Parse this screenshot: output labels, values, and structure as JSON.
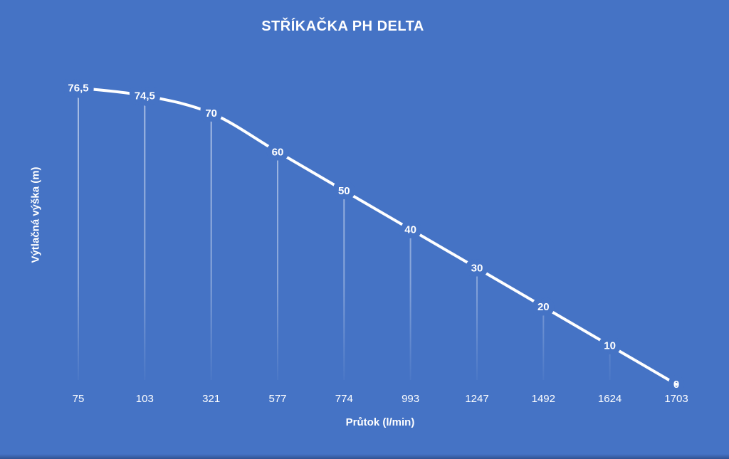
{
  "chart_data": {
    "type": "line",
    "title": "STŘÍKAČKA PH DELTA",
    "xlabel": "Průtok (l/min)",
    "ylabel": "Výtlačná výška (m)",
    "categories": [
      "75",
      "103",
      "321",
      "577",
      "774",
      "993",
      "1247",
      "1492",
      "1624",
      "1703"
    ],
    "values": [
      76.5,
      74.5,
      70,
      60,
      50,
      40,
      30,
      20,
      10,
      0
    ],
    "point_labels": [
      "76,5",
      "74,5",
      "70",
      "60",
      "50",
      "40",
      "30",
      "20",
      "10",
      "0"
    ],
    "ylim": [
      0,
      80
    ],
    "grid": false,
    "legend": false,
    "smoothed": true,
    "drop_lines": true,
    "colors": {
      "background": "#4573C5",
      "line": "#FFFFFF",
      "text": "#FFFFFF",
      "drop_line": "#FFFFFF"
    }
  }
}
